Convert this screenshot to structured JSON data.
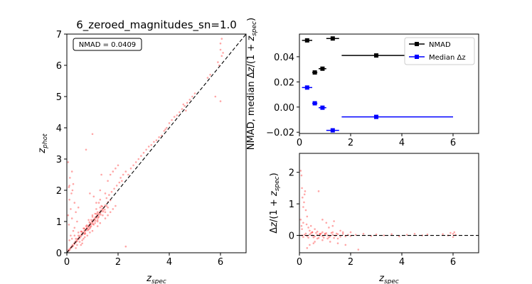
{
  "chart_data": [
    {
      "type": "scatter",
      "title": "6_zeroed_magnitudes_sn=1.0",
      "xlabel": "z_spec",
      "ylabel": "z_phot",
      "xlim": [
        0,
        7
      ],
      "ylim": [
        0,
        7
      ],
      "xticks": [
        "0",
        "2",
        "4",
        "6"
      ],
      "yticks": [
        "0",
        "1",
        "2",
        "3",
        "4",
        "5",
        "6",
        "7"
      ],
      "annotation": "NMAD = 0.0409",
      "reference_line": "y = x (black dashed)",
      "point_color": "#ff0000",
      "points": [
        [
          0.05,
          0.08
        ],
        [
          0.08,
          0.06
        ],
        [
          0.1,
          0.12
        ],
        [
          0.12,
          0.1
        ],
        [
          0.15,
          0.16
        ],
        [
          0.18,
          0.2
        ],
        [
          0.2,
          0.18
        ],
        [
          0.22,
          0.25
        ],
        [
          0.25,
          0.22
        ],
        [
          0.28,
          0.3
        ],
        [
          0.3,
          0.28
        ],
        [
          0.32,
          0.35
        ],
        [
          0.35,
          0.33
        ],
        [
          0.38,
          0.4
        ],
        [
          0.4,
          0.37
        ],
        [
          0.42,
          0.45
        ],
        [
          0.45,
          0.43
        ],
        [
          0.48,
          0.5
        ],
        [
          0.5,
          0.47
        ],
        [
          0.52,
          0.55
        ],
        [
          0.55,
          0.52
        ],
        [
          0.58,
          0.6
        ],
        [
          0.6,
          0.57
        ],
        [
          0.62,
          0.65
        ],
        [
          0.65,
          0.62
        ],
        [
          0.68,
          0.7
        ],
        [
          0.7,
          0.67
        ],
        [
          0.72,
          0.75
        ],
        [
          0.75,
          0.72
        ],
        [
          0.78,
          0.8
        ],
        [
          0.8,
          0.77
        ],
        [
          0.82,
          0.85
        ],
        [
          0.85,
          0.82
        ],
        [
          0.88,
          0.9
        ],
        [
          0.9,
          0.87
        ],
        [
          0.92,
          0.95
        ],
        [
          0.95,
          0.92
        ],
        [
          0.98,
          1.0
        ],
        [
          1.0,
          0.97
        ],
        [
          1.02,
          1.05
        ],
        [
          1.05,
          1.02
        ],
        [
          1.08,
          1.1
        ],
        [
          1.1,
          1.07
        ],
        [
          1.12,
          1.15
        ],
        [
          1.15,
          1.12
        ],
        [
          1.18,
          1.2
        ],
        [
          1.2,
          1.17
        ],
        [
          1.22,
          1.25
        ],
        [
          1.25,
          1.22
        ],
        [
          1.28,
          1.3
        ],
        [
          1.3,
          1.27
        ],
        [
          1.32,
          1.35
        ],
        [
          1.35,
          1.32
        ],
        [
          1.38,
          1.4
        ],
        [
          1.4,
          1.37
        ],
        [
          1.45,
          1.45
        ],
        [
          1.5,
          1.52
        ],
        [
          1.55,
          1.5
        ],
        [
          1.6,
          1.62
        ],
        [
          1.7,
          1.68
        ],
        [
          0.75,
          0.85
        ],
        [
          0.85,
          0.75
        ],
        [
          0.95,
          1.05
        ],
        [
          1.05,
          0.9
        ],
        [
          1.1,
          1.25
        ],
        [
          1.2,
          1.05
        ],
        [
          1.3,
          1.45
        ],
        [
          1.25,
          1.6
        ],
        [
          1.15,
          1.4
        ],
        [
          1.0,
          1.2
        ],
        [
          0.65,
          0.78
        ],
        [
          0.7,
          0.6
        ],
        [
          0.55,
          0.68
        ],
        [
          0.45,
          0.55
        ],
        [
          0.35,
          0.45
        ],
        [
          0.9,
          0.78
        ],
        [
          1.4,
          1.2
        ],
        [
          1.5,
          1.3
        ],
        [
          1.6,
          1.45
        ],
        [
          1.35,
          1.5
        ],
        [
          0.05,
          2.9
        ],
        [
          0.08,
          2.1
        ],
        [
          0.1,
          1.7
        ],
        [
          0.15,
          1.4
        ],
        [
          0.12,
          2.4
        ],
        [
          0.2,
          2.6
        ],
        [
          0.18,
          1.9
        ],
        [
          0.25,
          2.2
        ],
        [
          0.3,
          1.6
        ],
        [
          0.1,
          2.15
        ],
        [
          0.05,
          1.2
        ],
        [
          0.08,
          0.9
        ],
        [
          0.2,
          1.1
        ],
        [
          0.3,
          0.8
        ],
        [
          0.35,
          1.3
        ],
        [
          0.4,
          1.0
        ],
        [
          0.25,
          0.7
        ],
        [
          0.15,
          0.55
        ],
        [
          0.45,
          1.45
        ],
        [
          0.22,
          2.0
        ],
        [
          0.1,
          0.4
        ],
        [
          0.2,
          0.45
        ],
        [
          0.3,
          0.55
        ],
        [
          0.4,
          0.25
        ],
        [
          0.5,
          0.35
        ],
        [
          0.6,
          0.4
        ],
        [
          0.55,
          0.25
        ],
        [
          0.35,
          0.15
        ],
        [
          0.65,
          0.45
        ],
        [
          0.7,
          0.5
        ],
        [
          0.8,
          0.55
        ],
        [
          0.9,
          0.65
        ],
        [
          1.0,
          0.7
        ],
        [
          1.2,
          0.85
        ],
        [
          1.3,
          0.95
        ],
        [
          1.5,
          1.1
        ],
        [
          1.6,
          1.2
        ],
        [
          1.8,
          1.4
        ],
        [
          1.7,
          1.3
        ],
        [
          1.9,
          1.5
        ],
        [
          0.75,
          3.3
        ],
        [
          0.9,
          1.9
        ],
        [
          1.05,
          1.8
        ],
        [
          1.15,
          1.6
        ],
        [
          1.3,
          2.0
        ],
        [
          1.35,
          2.5
        ],
        [
          1.3,
          1.7
        ],
        [
          1.5,
          1.9
        ],
        [
          1.6,
          2.3
        ],
        [
          1.7,
          2.5
        ],
        [
          1.8,
          2.6
        ],
        [
          1.9,
          2.7
        ],
        [
          2.0,
          2.8
        ],
        [
          1.55,
          1.75
        ],
        [
          1.65,
          1.85
        ],
        [
          1.75,
          1.95
        ],
        [
          1.85,
          2.05
        ],
        [
          1.95,
          2.15
        ],
        [
          2.05,
          2.25
        ],
        [
          2.1,
          2.4
        ],
        [
          2.15,
          2.3
        ],
        [
          2.2,
          2.5
        ],
        [
          2.3,
          2.6
        ],
        [
          2.4,
          2.5
        ],
        [
          2.5,
          2.7
        ],
        [
          2.6,
          2.8
        ],
        [
          2.7,
          2.9
        ],
        [
          2.8,
          3.0
        ],
        [
          2.9,
          3.1
        ],
        [
          3.0,
          3.2
        ],
        [
          3.1,
          3.3
        ],
        [
          3.2,
          3.4
        ],
        [
          3.3,
          3.45
        ],
        [
          3.4,
          3.55
        ],
        [
          3.5,
          3.6
        ],
        [
          3.6,
          3.7
        ],
        [
          3.7,
          3.75
        ],
        [
          3.8,
          3.9
        ],
        [
          3.9,
          4.0
        ],
        [
          4.0,
          4.15
        ],
        [
          4.2,
          4.35
        ],
        [
          4.4,
          4.5
        ],
        [
          4.5,
          4.6
        ],
        [
          4.6,
          4.7
        ],
        [
          4.7,
          4.8
        ],
        [
          4.8,
          4.9
        ],
        [
          4.9,
          5.0
        ],
        [
          5.0,
          5.1
        ],
        [
          5.5,
          5.6
        ],
        [
          5.6,
          5.7
        ],
        [
          4.55,
          4.75
        ],
        [
          4.65,
          4.55
        ],
        [
          4.3,
          4.4
        ],
        [
          4.1,
          4.25
        ],
        [
          3.85,
          3.95
        ],
        [
          5.8,
          5.0
        ],
        [
          6.0,
          4.85
        ],
        [
          6.0,
          6.7
        ],
        [
          6.05,
          6.3
        ],
        [
          5.95,
          6.0
        ],
        [
          6.0,
          6.5
        ],
        [
          5.9,
          6.1
        ],
        [
          6.1,
          6.4
        ],
        [
          6.05,
          6.85
        ],
        [
          1.0,
          3.8
        ],
        [
          2.3,
          0.2
        ],
        [
          1.2,
          1.0
        ],
        [
          0.6,
          0.3
        ],
        [
          0.45,
          0.65
        ],
        [
          0.85,
          1.05
        ],
        [
          1.0,
          1.15
        ],
        [
          1.1,
          0.95
        ],
        [
          1.2,
          1.3
        ],
        [
          1.25,
          1.15
        ],
        [
          1.15,
          1.25
        ],
        [
          0.95,
          0.85
        ],
        [
          0.88,
          0.98
        ],
        [
          0.78,
          0.88
        ],
        [
          0.68,
          0.78
        ],
        [
          0.58,
          0.68
        ],
        [
          0.72,
          0.62
        ],
        [
          0.82,
          0.72
        ],
        [
          0.92,
          0.82
        ],
        [
          1.02,
          0.92
        ],
        [
          1.12,
          1.02
        ],
        [
          1.22,
          1.12
        ],
        [
          1.32,
          1.22
        ],
        [
          1.42,
          1.32
        ],
        [
          1.48,
          1.38
        ],
        [
          1.38,
          1.48
        ]
      ]
    },
    {
      "type": "line",
      "ylabel": "NMAD, median Δz/(1 + z_spec)",
      "xlim": [
        0,
        7
      ],
      "ylim": [
        -0.021,
        0.058
      ],
      "xticks": [
        "0",
        "2",
        "4",
        "6"
      ],
      "yticks": [
        "−0.02",
        "0.00",
        "0.02",
        "0.04"
      ],
      "legend_position": "upper right",
      "series": [
        {
          "name": "NMAD",
          "color": "#000000",
          "x": [
            0.3,
            0.6,
            0.9,
            1.3,
            3.0
          ],
          "xerr_low": [
            0.2,
            0.1,
            0.15,
            0.25,
            1.35
          ],
          "xerr_high": [
            0.2,
            0.1,
            0.15,
            0.25,
            3.0
          ],
          "y": [
            0.053,
            0.0275,
            0.0305,
            0.0545,
            0.041
          ],
          "yerr": [
            0.001,
            0.001,
            0.001,
            0.001,
            0.001
          ]
        },
        {
          "name": "Median Δz",
          "color": "#0000ff",
          "x": [
            0.3,
            0.6,
            0.9,
            1.3,
            3.0
          ],
          "xerr_low": [
            0.2,
            0.1,
            0.15,
            0.25,
            1.35
          ],
          "xerr_high": [
            0.2,
            0.1,
            0.15,
            0.25,
            3.0
          ],
          "y": [
            0.0155,
            0.003,
            -0.0005,
            -0.0185,
            -0.0078
          ],
          "yerr": [
            0.001,
            0.001,
            0.001,
            0.001,
            0.001
          ]
        }
      ]
    },
    {
      "type": "scatter",
      "xlabel": "z_spec",
      "ylabel": "Δz/(1 + z_spec)",
      "xlim": [
        0,
        7
      ],
      "ylim": [
        -0.55,
        2.6
      ],
      "xticks": [
        "0",
        "2",
        "4",
        "6"
      ],
      "yticks": [
        "0",
        "1",
        "2"
      ],
      "reference_line": "y = 0 (black dashed)",
      "point_color": "#ff0000",
      "points": [
        [
          0.05,
          2.05
        ],
        [
          0.08,
          1.9
        ],
        [
          0.1,
          1.5
        ],
        [
          0.12,
          1.2
        ],
        [
          0.15,
          0.9
        ],
        [
          0.2,
          1.3
        ],
        [
          0.18,
          1.05
        ],
        [
          0.25,
          0.8
        ],
        [
          0.3,
          0.6
        ],
        [
          0.22,
          1.4
        ],
        [
          0.05,
          0.5
        ],
        [
          0.08,
          0.3
        ],
        [
          0.1,
          0.2
        ],
        [
          0.15,
          0.4
        ],
        [
          0.28,
          0.35
        ],
        [
          0.35,
          0.25
        ],
        [
          0.4,
          0.15
        ],
        [
          0.45,
          0.3
        ],
        [
          0.5,
          0.1
        ],
        [
          0.75,
          1.4
        ],
        [
          0.9,
          0.5
        ],
        [
          1.05,
          0.4
        ],
        [
          1.15,
          0.25
        ],
        [
          1.3,
          0.3
        ],
        [
          1.35,
          0.45
        ],
        [
          0.6,
          0.2
        ],
        [
          0.7,
          0.12
        ],
        [
          0.8,
          0.05
        ],
        [
          0.55,
          -0.25
        ],
        [
          0.4,
          -0.3
        ],
        [
          0.3,
          -0.4
        ],
        [
          0.6,
          -0.2
        ],
        [
          0.9,
          -0.15
        ],
        [
          1.2,
          -0.2
        ],
        [
          1.5,
          -0.25
        ],
        [
          1.8,
          -0.3
        ],
        [
          2.3,
          -0.45
        ],
        [
          1.6,
          0.15
        ],
        [
          1.7,
          0.1
        ],
        [
          2.0,
          0.1
        ],
        [
          0.1,
          0.0
        ],
        [
          0.2,
          0.02
        ],
        [
          0.3,
          -0.02
        ],
        [
          0.4,
          0.03
        ],
        [
          0.5,
          0.0
        ],
        [
          0.6,
          -0.03
        ],
        [
          0.7,
          0.02
        ],
        [
          0.8,
          0.0
        ],
        [
          0.9,
          -0.02
        ],
        [
          1.0,
          0.03
        ],
        [
          1.1,
          0.0
        ],
        [
          1.2,
          -0.03
        ],
        [
          1.3,
          0.02
        ],
        [
          1.4,
          -0.01
        ],
        [
          1.5,
          0.04
        ],
        [
          1.6,
          -0.04
        ],
        [
          1.7,
          0.05
        ],
        [
          1.8,
          -0.03
        ],
        [
          1.9,
          0.02
        ],
        [
          2.0,
          -0.02
        ],
        [
          0.15,
          -0.05
        ],
        [
          0.25,
          0.06
        ],
        [
          0.35,
          -0.07
        ],
        [
          0.45,
          0.07
        ],
        [
          0.55,
          -0.06
        ],
        [
          0.65,
          0.08
        ],
        [
          0.75,
          -0.08
        ],
        [
          0.85,
          0.06
        ],
        [
          0.95,
          -0.07
        ],
        [
          1.05,
          0.07
        ],
        [
          1.15,
          -0.06
        ],
        [
          1.25,
          0.08
        ],
        [
          1.35,
          -0.08
        ],
        [
          1.45,
          0.06
        ],
        [
          0.5,
          0.1
        ],
        [
          0.7,
          -0.1
        ],
        [
          0.9,
          0.1
        ],
        [
          1.1,
          -0.1
        ],
        [
          1.3,
          0.1
        ],
        [
          1.5,
          -0.1
        ],
        [
          2.2,
          0.02
        ],
        [
          2.5,
          0.05
        ],
        [
          2.8,
          -0.02
        ],
        [
          3.0,
          0.03
        ],
        [
          3.3,
          0.0
        ],
        [
          3.6,
          0.04
        ],
        [
          3.9,
          -0.03
        ],
        [
          4.2,
          0.02
        ],
        [
          4.5,
          0.05
        ],
        [
          4.8,
          0.0
        ],
        [
          5.0,
          0.03
        ],
        [
          5.6,
          0.04
        ],
        [
          5.8,
          0.0
        ],
        [
          6.0,
          0.05
        ],
        [
          6.0,
          -0.05
        ],
        [
          6.05,
          0.1
        ],
        [
          5.9,
          0.08
        ],
        [
          6.1,
          0.02
        ],
        [
          1.0,
          0.06
        ],
        [
          0.8,
          0.04
        ]
      ]
    }
  ]
}
